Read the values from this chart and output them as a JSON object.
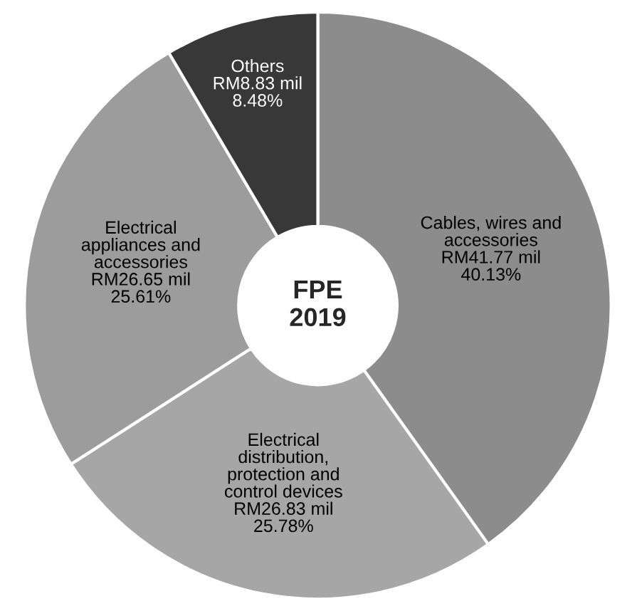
{
  "chart_data": {
    "type": "donut",
    "title": "FPE\n2019",
    "categories": [
      "Cables, wires and\naccessories",
      "Electrical\ndistribution,\nprotection and\ncontrol devices",
      "Electrical\nappliances and\naccessories",
      "Others"
    ],
    "values": [
      40.13,
      25.78,
      25.61,
      8.48
    ],
    "value_labels": [
      "RM41.77 mil\n40.13%",
      "RM26.83 mil\n25.78%",
      "RM26.65 mil\n25.61%",
      "RM8.83 mil\n8.48%"
    ],
    "colors": [
      "#8c8c8c",
      "#a6a6a6",
      "#9c9c9c",
      "#383838"
    ]
  }
}
